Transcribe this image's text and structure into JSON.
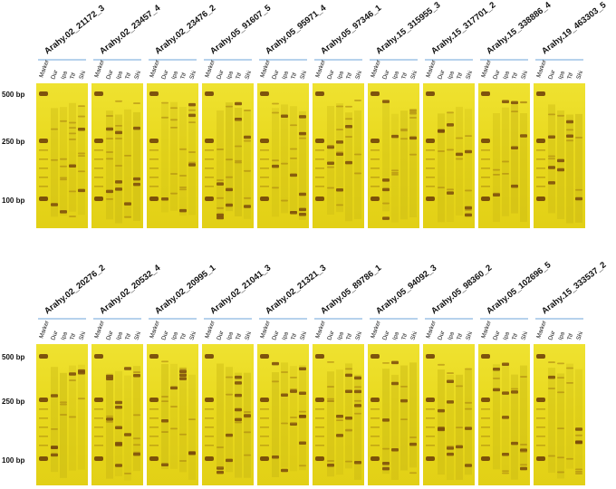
{
  "size_ladder": [
    "500 bp",
    "250 bp",
    "100 bp"
  ],
  "lanes": [
    "Marker",
    "Dur",
    "Ipa",
    "Tif",
    "Shi"
  ],
  "rows": [
    {
      "markers": [
        "Arahy.02_21172_3",
        "Arahy.02_23457_4",
        "Arahy.02_23476_2",
        "Arahy.05_91607_5",
        "Arahy.05_95971_4",
        "Arahy.05_97346_1",
        "Arahy.15_315955_3",
        "Arahy.15_317701_2",
        "Arahy.15_338886_4",
        "Arahy.19_463303_5"
      ]
    },
    {
      "markers": [
        "Arahy.02_20276_2",
        "Arahy.02_20532_4",
        "Arahy.02_20995_1",
        "Arahy.02_21041_3",
        "Arahy.02_21321_3",
        "Arahy.05_89786_1",
        "Arahy.05_94092_3",
        "Arahy.05_98360_2",
        "Arahy.05_102696_5",
        "Arahy.15_333537_2"
      ]
    }
  ],
  "colors": {
    "gel": "#eadc1c",
    "gel_dark": "#d7c615",
    "band": "#7a4a0c",
    "title_line": "#6ea6d8"
  }
}
